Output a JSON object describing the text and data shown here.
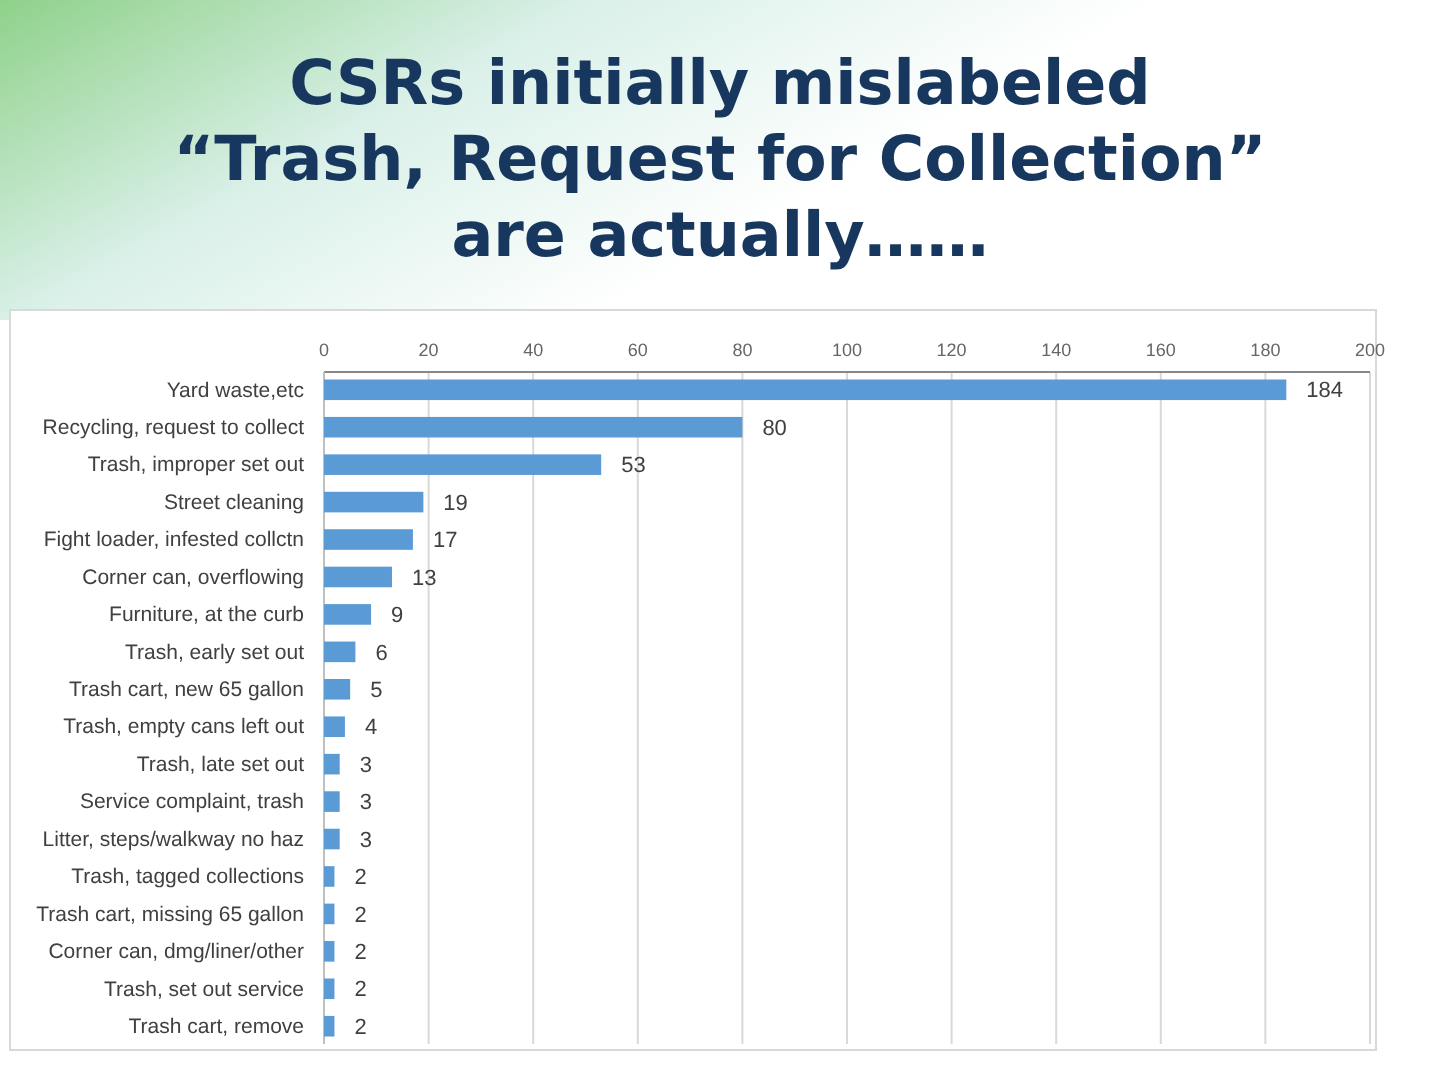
{
  "chart_data": {
    "type": "bar",
    "orientation": "horizontal",
    "title": "CSRs initially mislabeled\n“Trash, Request for Collection”\nare actually……",
    "categories": [
      "Yard waste,etc",
      "Recycling, request to collect",
      "Trash, improper set out",
      "Street cleaning",
      "Fight loader, infested collctn",
      "Corner can, overflowing",
      "Furniture, at the curb",
      "Trash, early set out",
      "Trash cart, new 65 gallon",
      "Trash, empty cans left out",
      "Trash, late set out",
      "Service complaint, trash",
      "Litter, steps/walkway no haz",
      "Trash, tagged collections",
      "Trash cart, missing 65 gallon",
      "Corner can, dmg/liner/other",
      "Trash, set out service",
      "Trash cart, remove"
    ],
    "values": [
      184,
      80,
      53,
      19,
      17,
      13,
      9,
      6,
      5,
      4,
      3,
      3,
      3,
      2,
      2,
      2,
      2,
      2
    ],
    "color": "#5b9bd5",
    "data_labels": true,
    "grid": "x",
    "xlim": [
      0,
      200
    ],
    "xticks": [
      0,
      20,
      40,
      60,
      80,
      100,
      120,
      140,
      160,
      180,
      200
    ]
  }
}
